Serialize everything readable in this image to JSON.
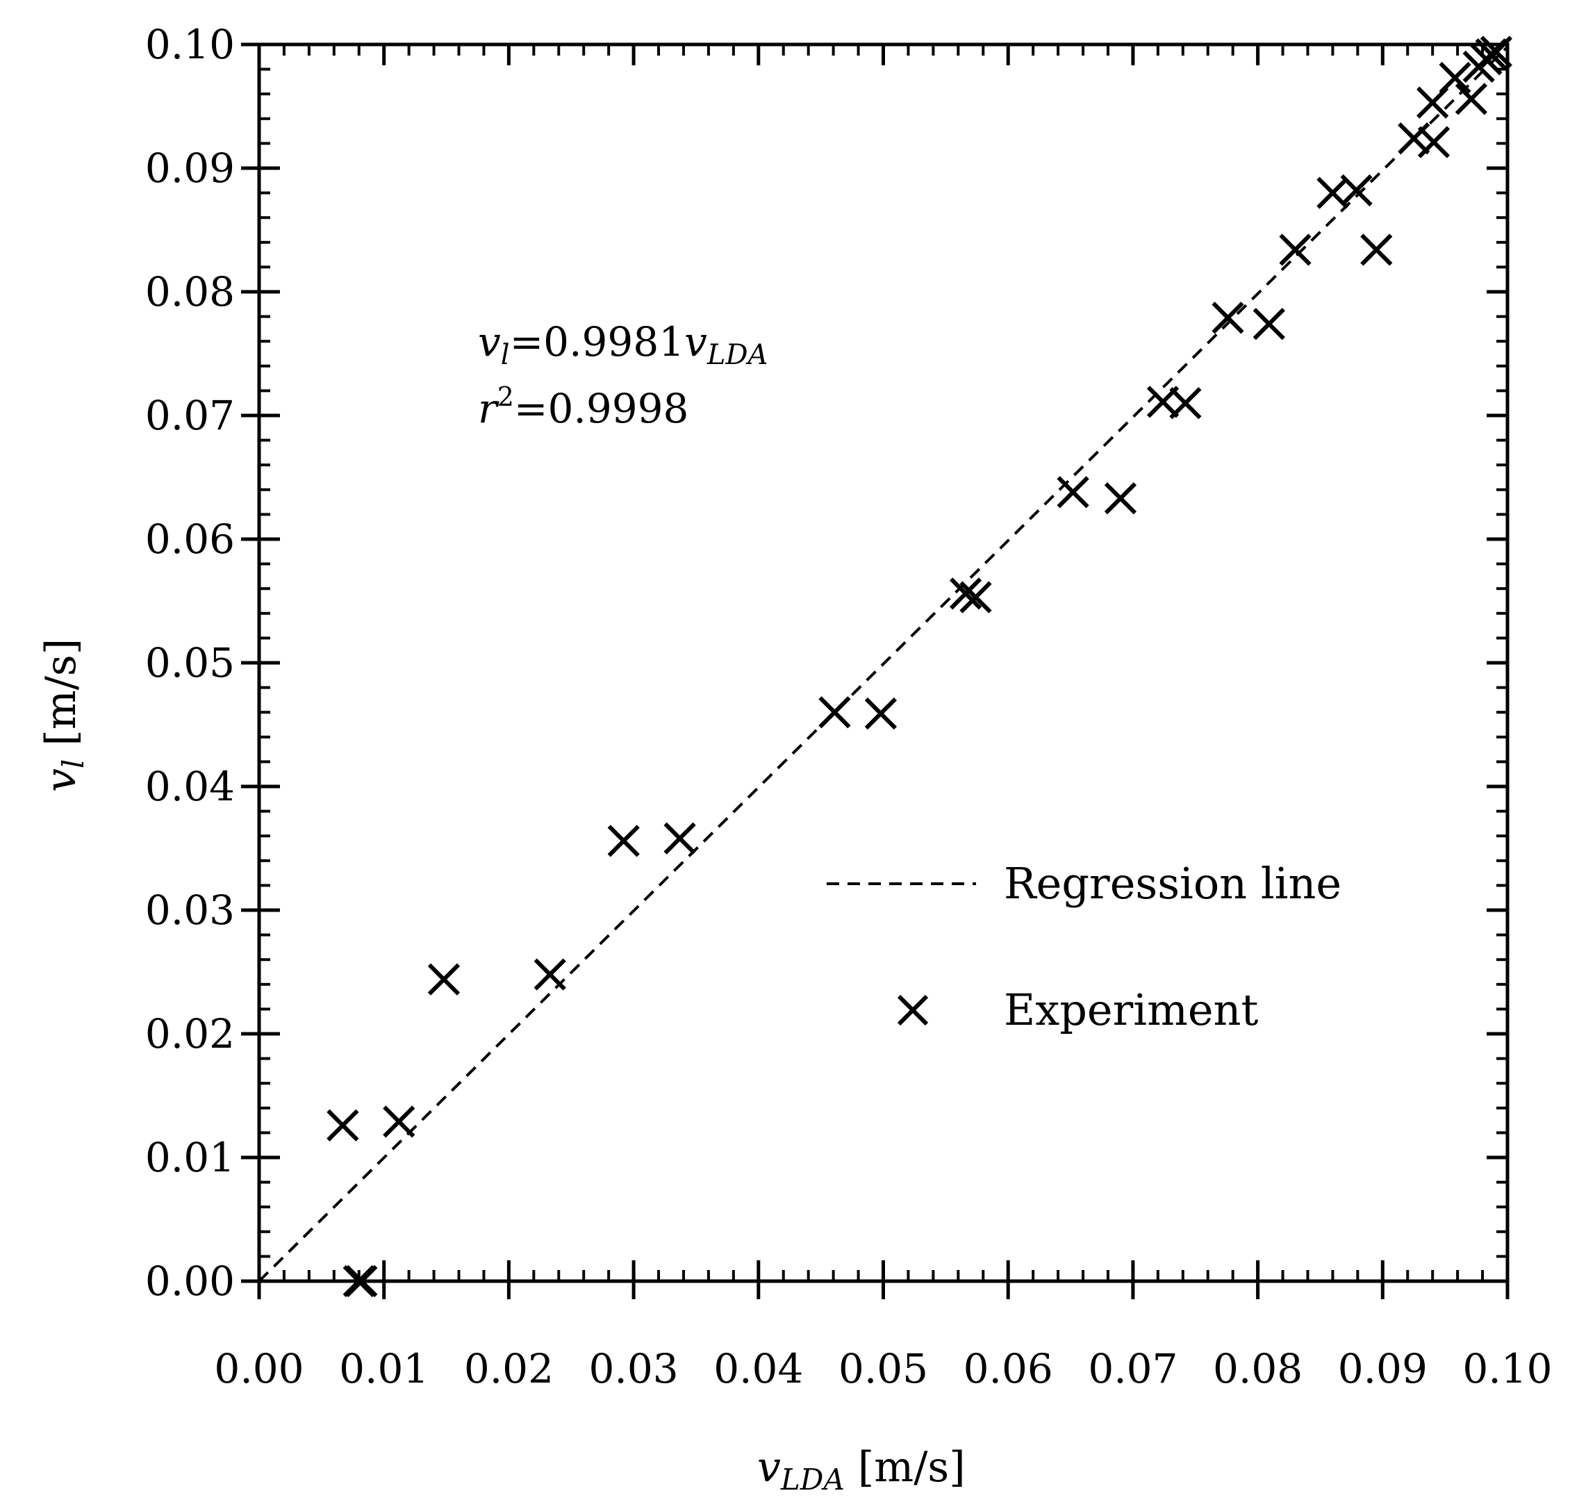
{
  "chart_data": {
    "type": "scatter",
    "xlabel": {
      "var": "v",
      "sub": "LDA",
      "unit": " [m/s]"
    },
    "ylabel": {
      "var": "v",
      "sub": "l",
      "unit": " [m/s]"
    },
    "xlim": [
      0,
      0.1
    ],
    "ylim": [
      0,
      0.1
    ],
    "x_ticks": [
      "0.00",
      "0.01",
      "0.02",
      "0.03",
      "0.04",
      "0.05",
      "0.06",
      "0.07",
      "0.08",
      "0.09",
      "0.10"
    ],
    "y_ticks": [
      "0.00",
      "0.01",
      "0.02",
      "0.03",
      "0.04",
      "0.05",
      "0.06",
      "0.07",
      "0.08",
      "0.09",
      "0.10"
    ],
    "grid": false,
    "legend": {
      "placement": "center-right",
      "regression_label": "Regression line",
      "experiment_label": "Experiment"
    },
    "annotation": {
      "eq_var": "v",
      "eq_sub": "l",
      "eq_mid": "=0.9981",
      "eq_var2": "v",
      "eq_sub2": "LDA",
      "r_var": "r",
      "r_sup": "2",
      "r_rest": "=0.9998"
    },
    "regression": {
      "slope": 0.9981,
      "x_range": [
        0,
        0.1
      ]
    },
    "series": [
      {
        "name": "Experiment",
        "marker": "x",
        "points": [
          [
            0.0067,
            0.0126
          ],
          [
            0.0112,
            0.0129
          ],
          [
            0.0148,
            0.0244
          ],
          [
            0.0233,
            0.0248
          ],
          [
            0.0292,
            0.0356
          ],
          [
            0.0337,
            0.0358
          ],
          [
            0.0461,
            0.046
          ],
          [
            0.0498,
            0.0459
          ],
          [
            0.0566,
            0.0556
          ],
          [
            0.0574,
            0.0553
          ],
          [
            0.0652,
            0.0638
          ],
          [
            0.069,
            0.0633
          ],
          [
            0.0724,
            0.0711
          ],
          [
            0.0742,
            0.071
          ],
          [
            0.0776,
            0.0779
          ],
          [
            0.0809,
            0.0774
          ],
          [
            0.083,
            0.0834
          ],
          [
            0.086,
            0.088
          ],
          [
            0.0879,
            0.0882
          ],
          [
            0.0895,
            0.0834
          ],
          [
            0.0925,
            0.0924
          ],
          [
            0.0941,
            0.0921
          ],
          [
            0.094,
            0.0953
          ],
          [
            0.0958,
            0.0973
          ],
          [
            0.0971,
            0.0956
          ],
          [
            0.0977,
            0.0982
          ],
          [
            0.0983,
            0.0988
          ],
          [
            0.0987,
            0.0992
          ],
          [
            0.0991,
            0.0994
          ],
          [
            0.008,
            0.0
          ],
          [
            0.0082,
            0.0
          ]
        ]
      }
    ]
  }
}
